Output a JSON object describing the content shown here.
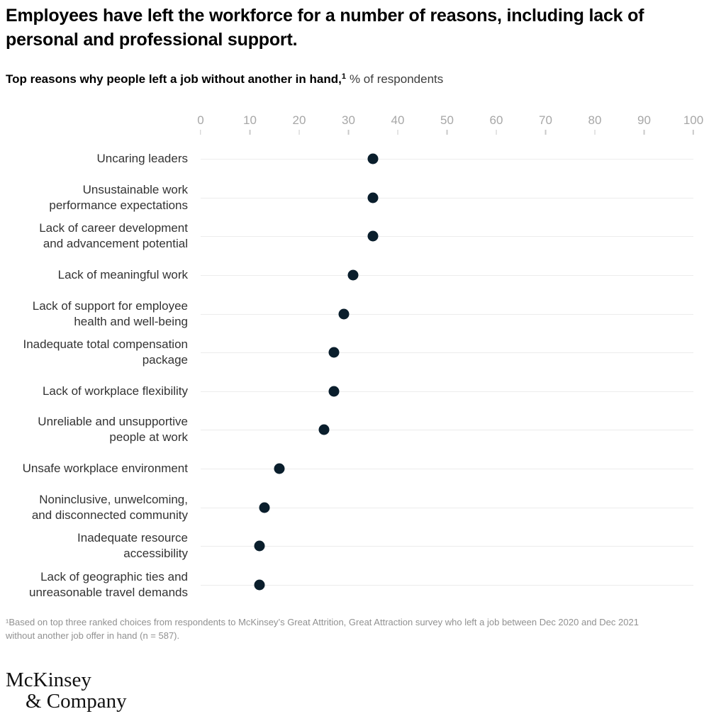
{
  "header": {
    "title": "Employees have left the workforce for a number of reasons, including lack of\npersonal and professional support."
  },
  "subtitle": {
    "bold": "Top reasons why people left a job without another in hand,",
    "sup": "1",
    "rest": "% of respondents"
  },
  "chart_data": {
    "type": "scatter",
    "variant": "horizontal-dot-plot",
    "title": "Top reasons why people left a job without another in hand, % of respondents",
    "categories": [
      "Uncaring leaders",
      "Unsustainable work\nperformance expectations",
      "Lack of career development\nand advancement potential",
      "Lack of meaningful work",
      "Lack of support for employee\nhealth and well-being",
      "Inadequate total compensation\npackage",
      "Lack of workplace flexibility",
      "Unreliable and unsupportive\npeople at work",
      "Unsafe workplace environment",
      "Noninclusive, unwelcoming,\nand disconnected community",
      "Inadequate resource\naccessibility",
      "Lack of geographic ties and\nunreasonable travel demands"
    ],
    "values": [
      35,
      35,
      35,
      31,
      29,
      27,
      27,
      25,
      16,
      13,
      12,
      12
    ],
    "xlim": [
      0,
      100
    ],
    "x_ticks": [
      0,
      10,
      20,
      30,
      40,
      50,
      60,
      70,
      80,
      90,
      100
    ],
    "xlabel": "",
    "ylabel": "",
    "unit": "% of respondents",
    "legend": "none",
    "grid": "horizontal light-gray line per category",
    "axis_position": "top",
    "dot_color": "#0a1e2c",
    "gridline_color": "#ececec",
    "tick_label_color": "#a7a7a7",
    "layout": {
      "track_width": 695
    }
  },
  "footnote": {
    "text": "¹Based on top three ranked choices from respondents to McKinsey’s Great Attrition, Great Attraction survey who left a job between Dec 2020 and Dec 2021\nwithout another job offer in hand (n = 587)."
  },
  "logo": {
    "line1": "McKinsey",
    "line2": "& Company"
  }
}
